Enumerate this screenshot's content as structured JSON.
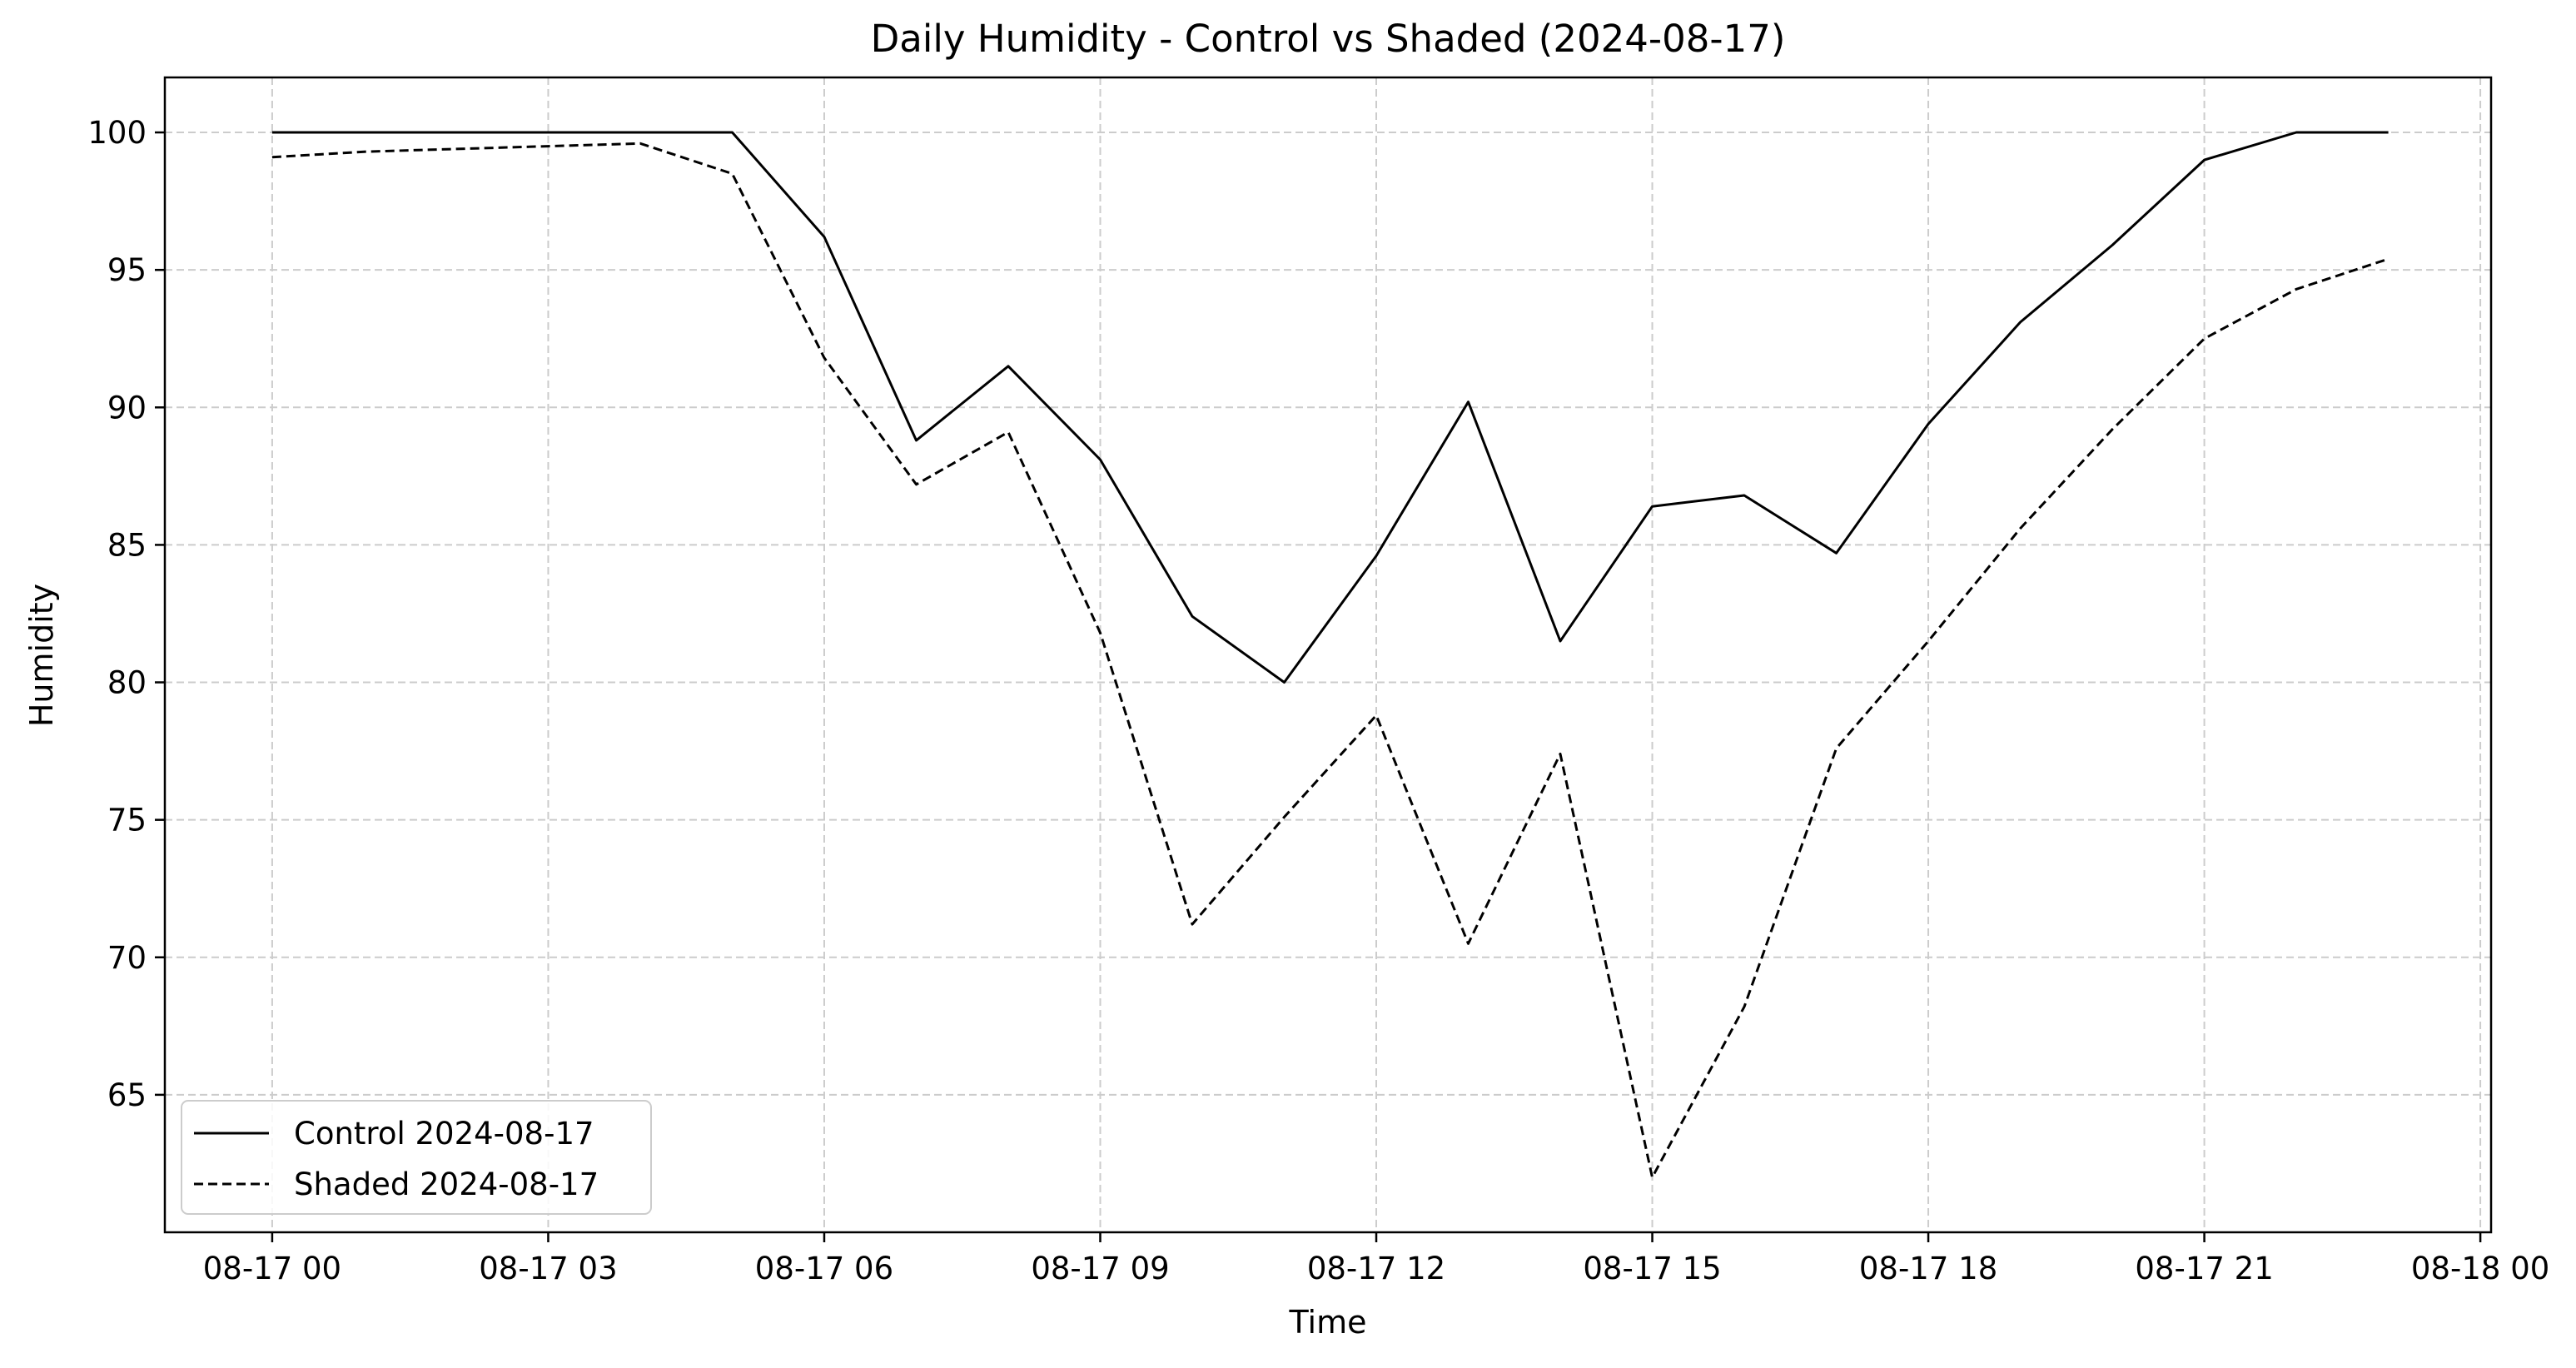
{
  "chart_data": {
    "type": "line",
    "title": "Daily Humidity - Control vs Shaded (2024-08-17)",
    "xlabel": "Time",
    "ylabel": "Humidity",
    "x_ticks": [
      "08-17 00",
      "08-17 03",
      "08-17 06",
      "08-17 09",
      "08-17 12",
      "08-17 15",
      "08-17 18",
      "08-17 21",
      "08-18 00"
    ],
    "y_ticks": [
      65,
      70,
      75,
      80,
      85,
      90,
      95,
      100
    ],
    "xlim": [
      "2024-08-16 22:50",
      "2024-08-18 00:07"
    ],
    "ylim": [
      60.0,
      102.0
    ],
    "grid": true,
    "legend_position": "bottom-left",
    "x": [
      "2024-08-17 00:00",
      "2024-08-17 01:00",
      "2024-08-17 02:00",
      "2024-08-17 03:00",
      "2024-08-17 04:00",
      "2024-08-17 05:00",
      "2024-08-17 06:00",
      "2024-08-17 07:00",
      "2024-08-17 08:00",
      "2024-08-17 09:00",
      "2024-08-17 10:00",
      "2024-08-17 11:00",
      "2024-08-17 12:00",
      "2024-08-17 13:00",
      "2024-08-17 14:00",
      "2024-08-17 15:00",
      "2024-08-17 16:00",
      "2024-08-17 17:00",
      "2024-08-17 18:00",
      "2024-08-17 19:00",
      "2024-08-17 20:00",
      "2024-08-17 21:00",
      "2024-08-17 22:00",
      "2024-08-17 23:00"
    ],
    "series": [
      {
        "name": "Control 2024-08-17",
        "line_style": "solid",
        "color": "#000000",
        "values": [
          100.0,
          100.0,
          100.0,
          100.0,
          100.0,
          100.0,
          96.2,
          88.8,
          91.5,
          88.1,
          82.4,
          80.0,
          84.6,
          90.2,
          81.5,
          86.4,
          86.8,
          84.7,
          89.4,
          93.1,
          95.9,
          99.0,
          100.0,
          100.0
        ]
      },
      {
        "name": "Shaded 2024-08-17",
        "line_style": "dashed",
        "color": "#000000",
        "values": [
          99.1,
          99.3,
          99.4,
          99.5,
          99.6,
          98.5,
          91.8,
          87.2,
          89.1,
          81.8,
          71.2,
          75.1,
          78.8,
          70.5,
          77.4,
          62.0,
          68.2,
          77.6,
          81.5,
          85.6,
          89.2,
          92.5,
          94.3,
          95.4
        ]
      }
    ]
  }
}
